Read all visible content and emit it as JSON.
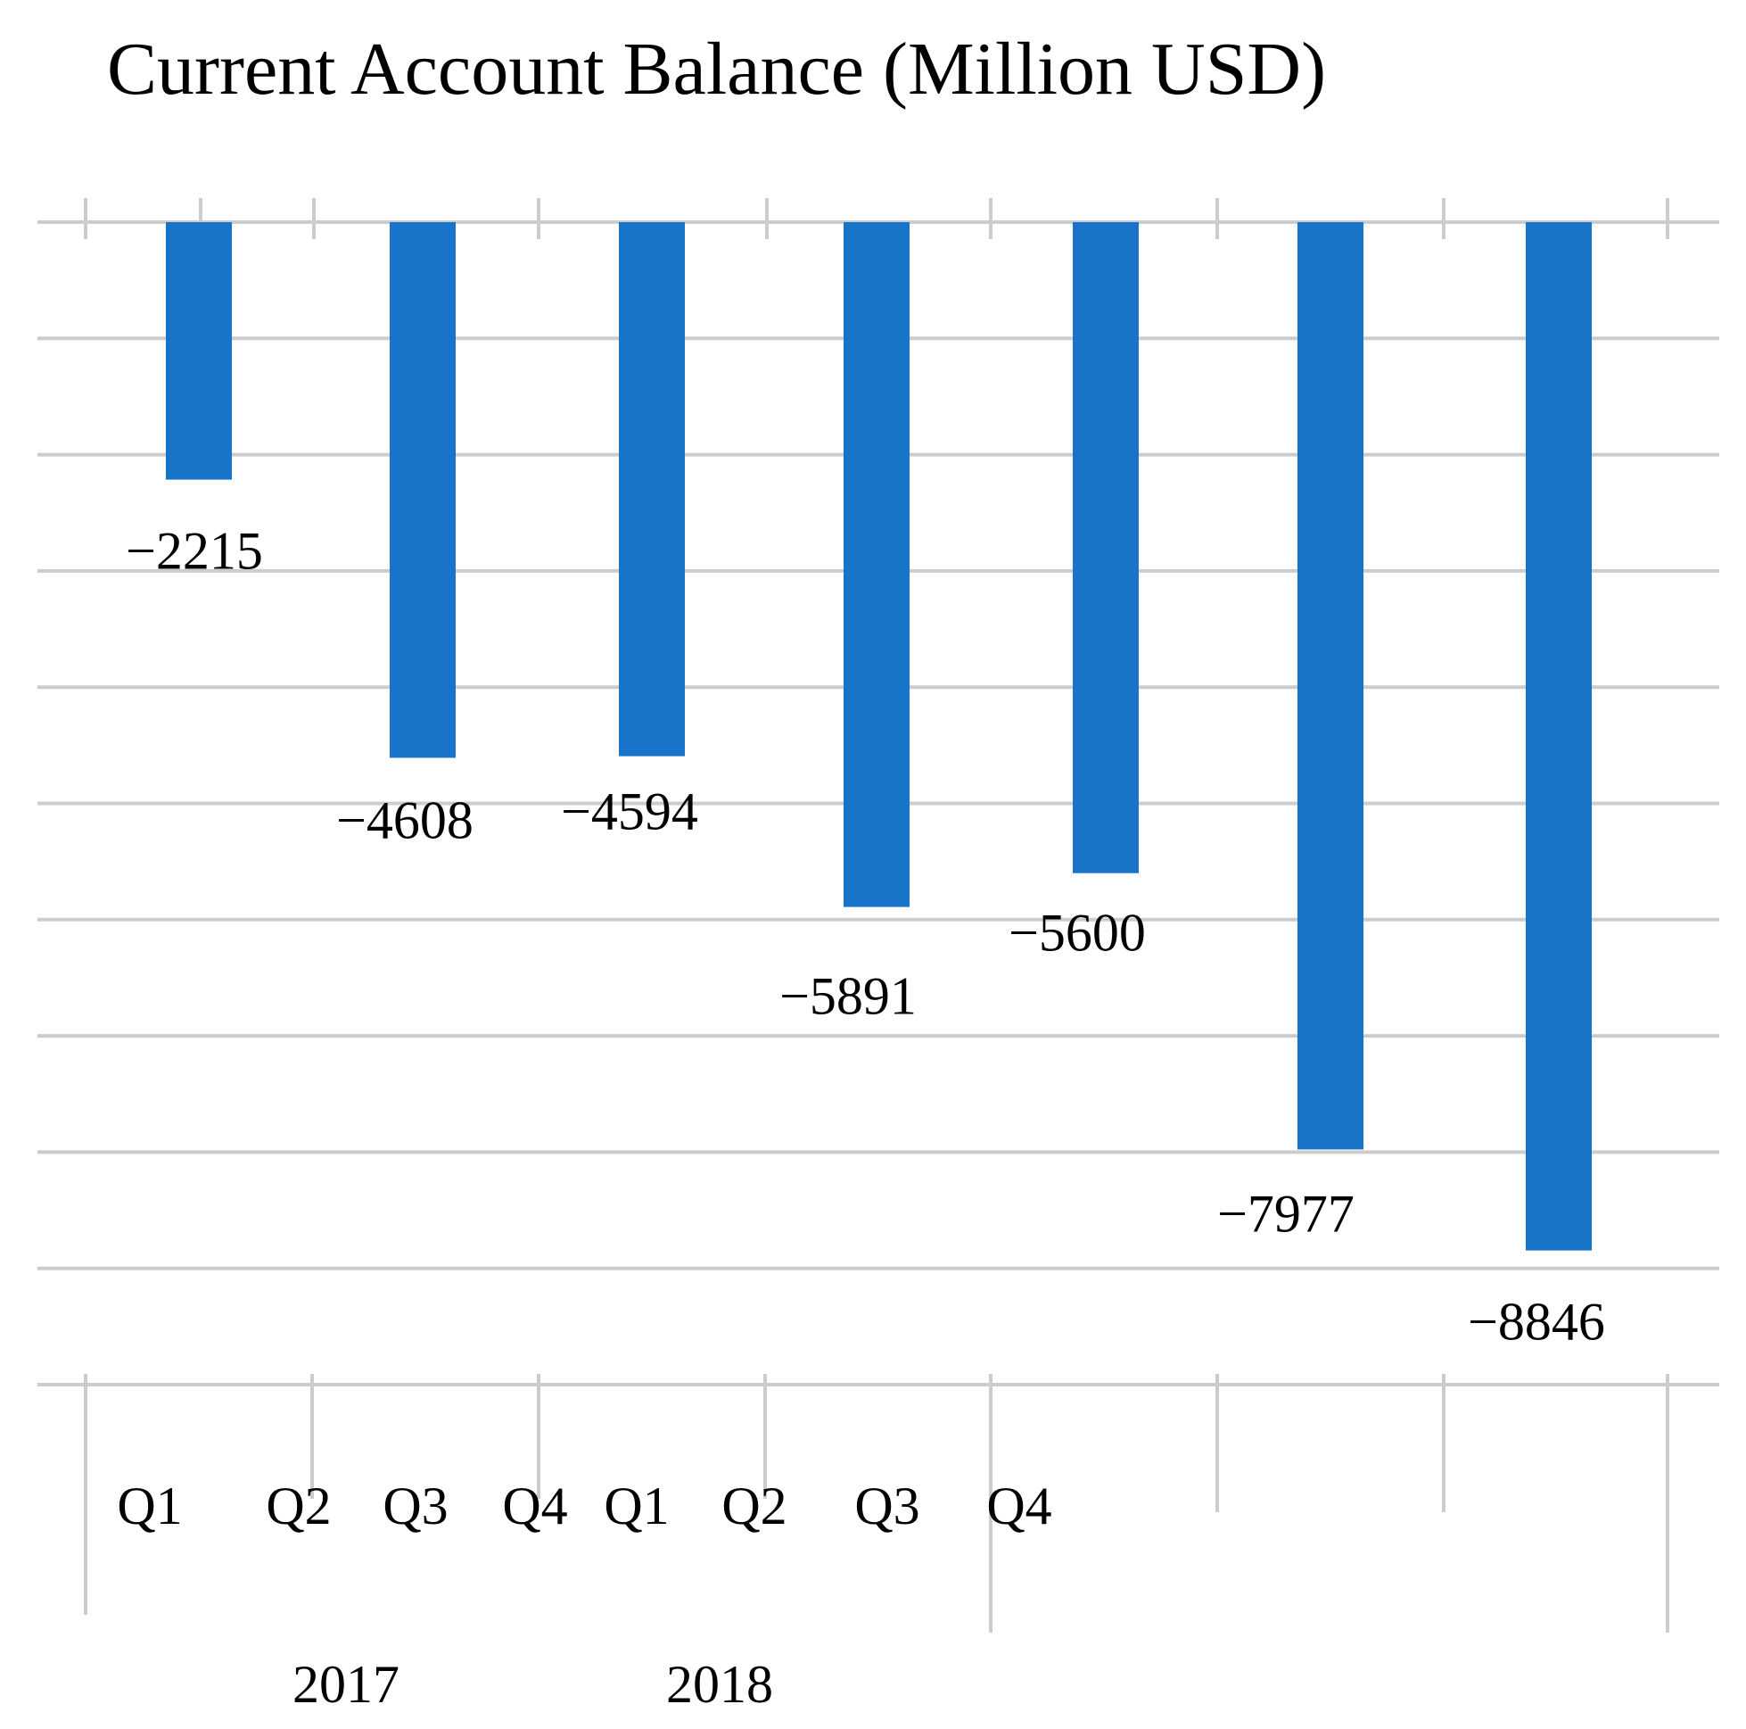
{
  "chart_data": {
    "type": "bar",
    "title": "Current Account Balance (Million USD)",
    "xlabel": "",
    "ylabel": "",
    "values": [
      -2215,
      -4608,
      -4594,
      -5891,
      -5600,
      -7977,
      -8846
    ],
    "data_labels": [
      "−2215",
      "−4608",
      "−4594",
      "−5891",
      "−5600",
      "−7977",
      "−8846"
    ],
    "tick_labels": [
      "Q1",
      "Q2",
      "Q3",
      "Q4",
      "Q1",
      "Q2",
      "Q3",
      "Q4"
    ],
    "groups": [
      {
        "label": "2017"
      },
      {
        "label": "2018"
      }
    ],
    "ylim": [
      -10000,
      0
    ],
    "grid": true,
    "legend": "none",
    "colors": {
      "bar": "#1874C9",
      "grid": "#CCCCCC",
      "text": "#000000"
    }
  }
}
